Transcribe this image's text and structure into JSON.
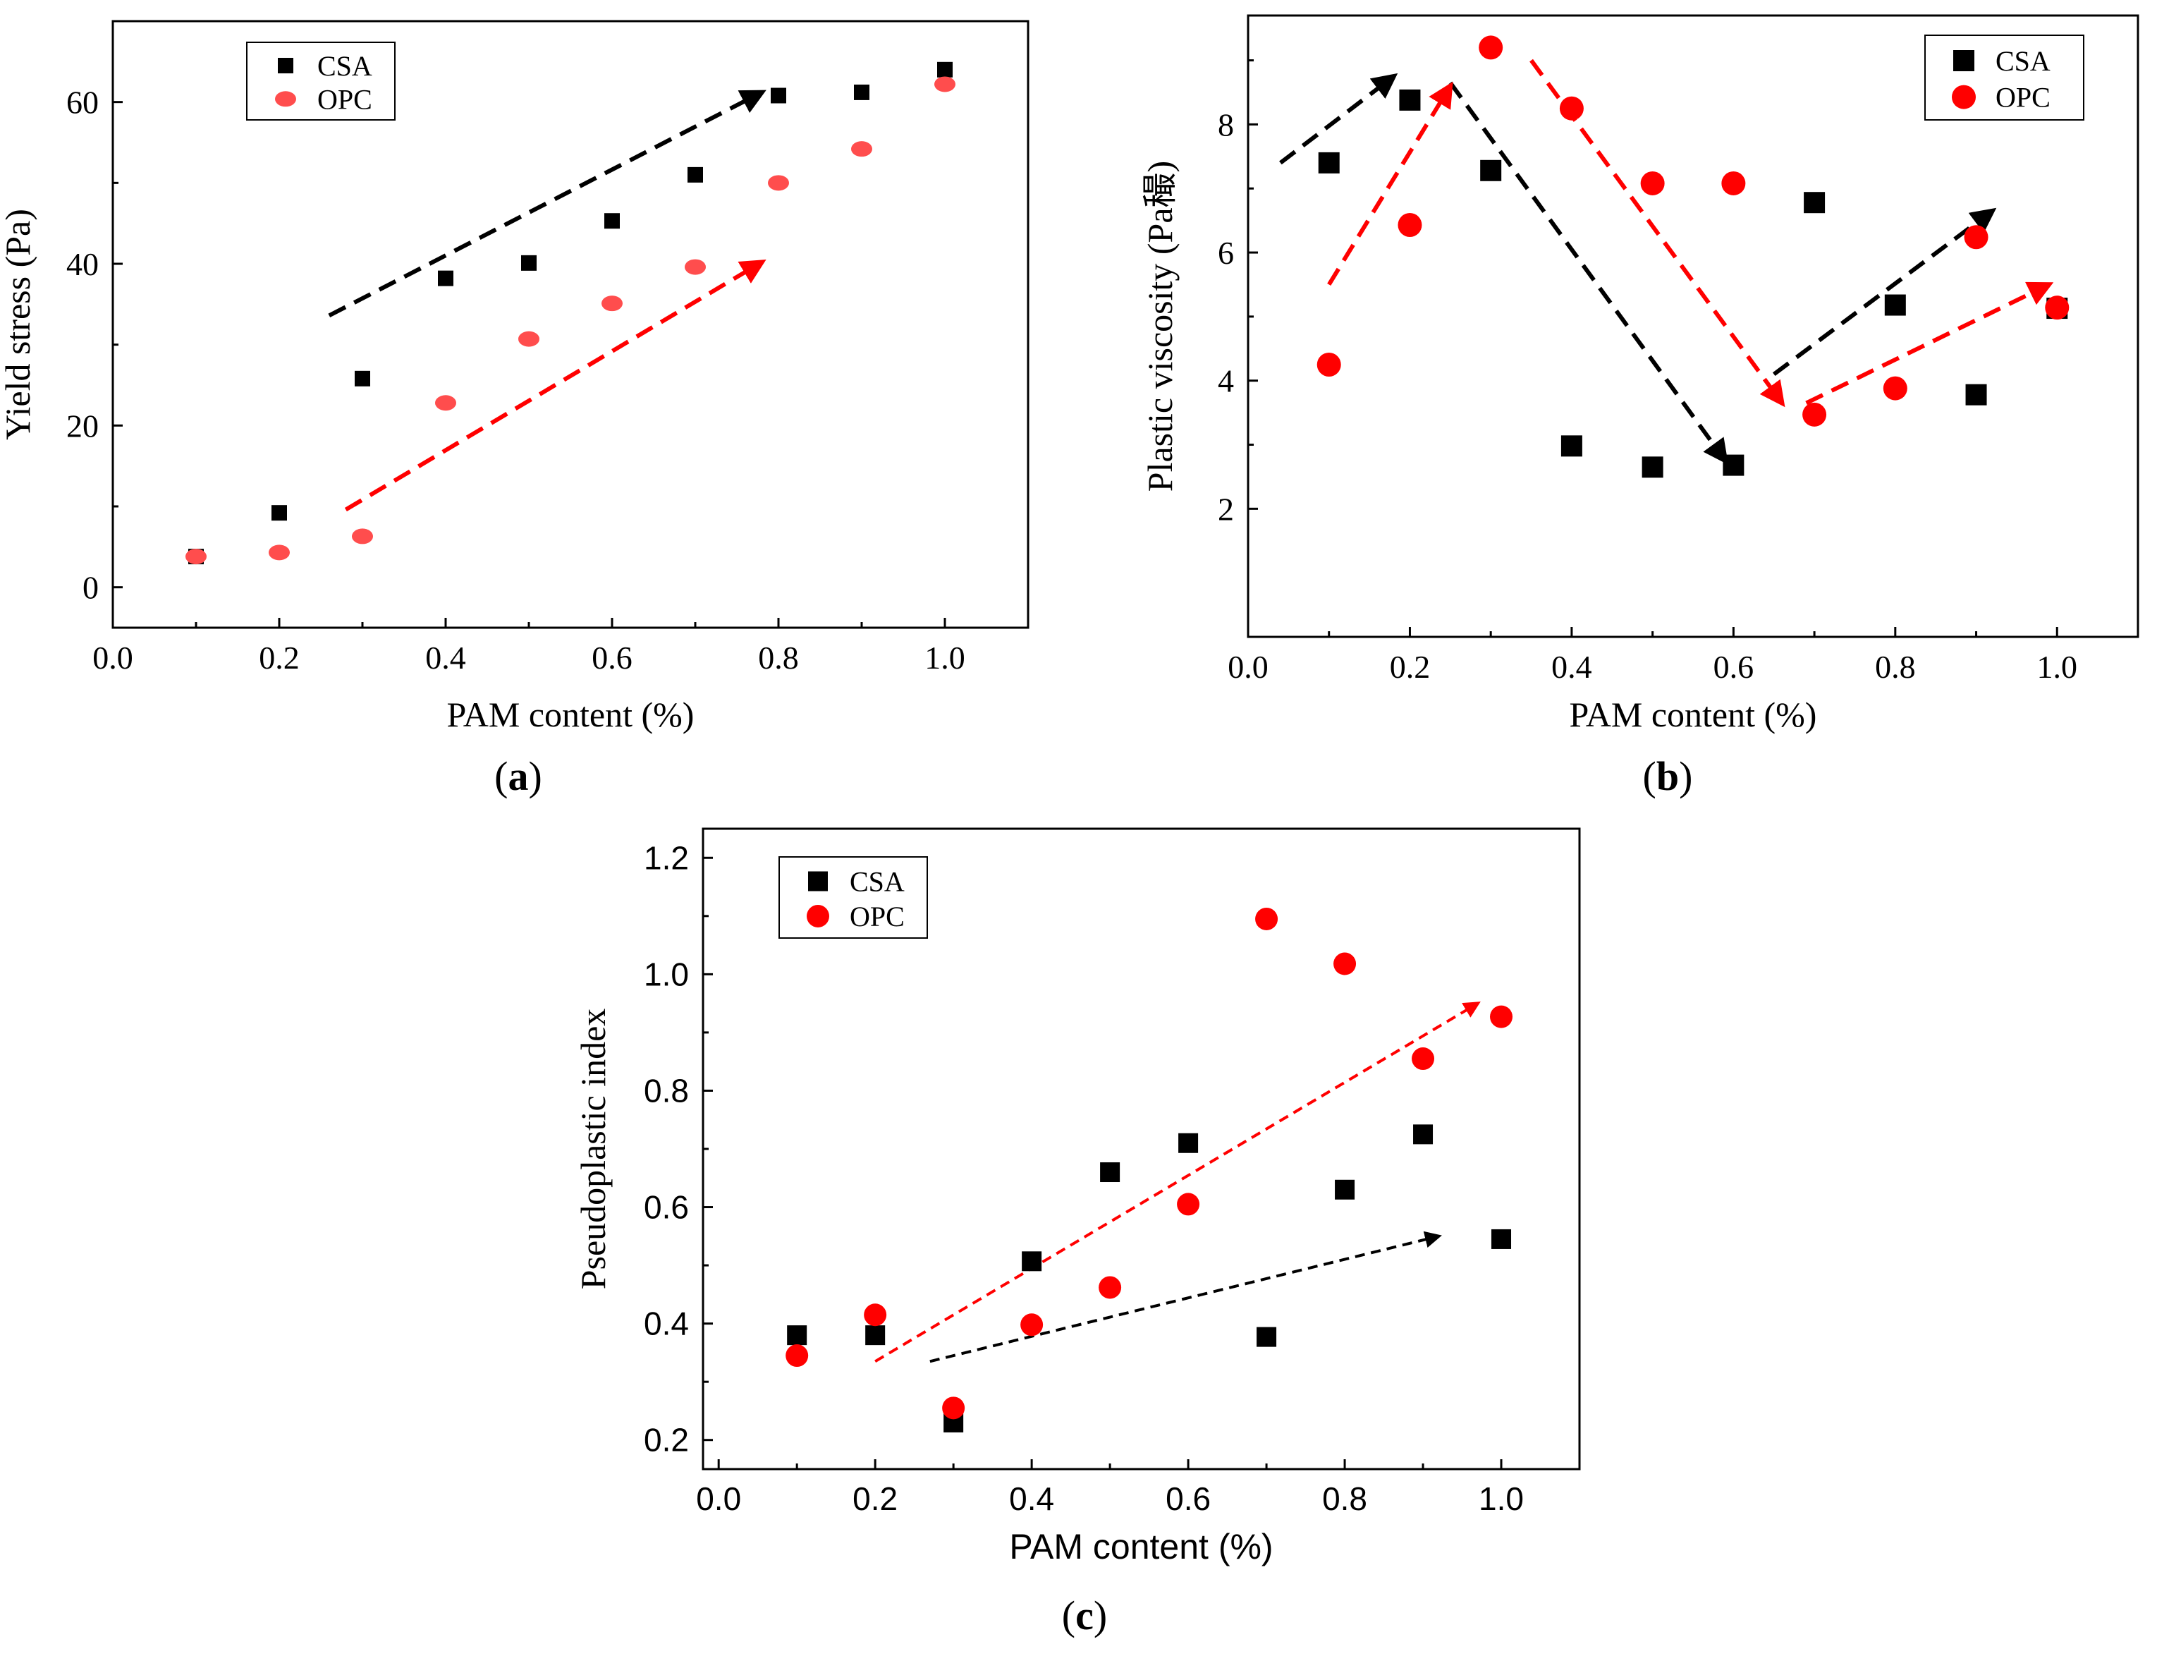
{
  "colors": {
    "CSA": "#000000",
    "OPC": "#ff0000",
    "OPC_light": "#ff4d4d"
  },
  "chart_data": [
    {
      "panel": "(a)",
      "panel_letter": "a",
      "type": "scatter",
      "xlabel": "PAM content (%)",
      "ylabel": "Yield stress (Pa)",
      "xlim": [
        0,
        1.1
      ],
      "ylim": [
        -5,
        70
      ],
      "xticks": [
        "0.0",
        "0.2",
        "0.4",
        "0.6",
        "0.8",
        "1.0"
      ],
      "yticks": [
        "0",
        "20",
        "40",
        "60"
      ],
      "legend_position": "top-left",
      "series": [
        {
          "name": "CSA",
          "x": [
            0.1,
            0.2,
            0.3,
            0.4,
            0.5,
            0.6,
            0.7,
            0.8,
            0.9,
            1.0
          ],
          "y": [
            3.8,
            9.2,
            25.8,
            38.2,
            40.1,
            45.3,
            51.0,
            60.8,
            61.2,
            64.0
          ]
        },
        {
          "name": "OPC",
          "x": [
            0.1,
            0.2,
            0.3,
            0.4,
            0.5,
            0.6,
            0.7,
            0.8,
            0.9,
            1.0
          ],
          "y": [
            3.8,
            4.3,
            6.3,
            22.8,
            30.7,
            35.1,
            39.6,
            50.0,
            54.2,
            62.2
          ]
        }
      ],
      "trend_arrows": [
        {
          "series": "CSA",
          "from": [
            0.26,
            33.6
          ],
          "to": [
            0.78,
            61.2
          ]
        },
        {
          "series": "OPC",
          "from": [
            0.28,
            9.6
          ],
          "to": [
            0.78,
            40.2
          ]
        }
      ]
    },
    {
      "panel": "(b)",
      "panel_letter": "b",
      "type": "scatter",
      "xlabel": "PAM content (%)",
      "ylabel": "Plastic viscosity (Pa穝)",
      "xlim": [
        0,
        1.1
      ],
      "ylim": [
        0,
        9.7
      ],
      "xticks": [
        "0.0",
        "0.2",
        "0.4",
        "0.6",
        "0.8",
        "1.0"
      ],
      "yticks": [
        "2",
        "4",
        "6",
        "8"
      ],
      "legend_position": "top-right",
      "series": [
        {
          "name": "CSA",
          "x": [
            0.1,
            0.2,
            0.3,
            0.4,
            0.5,
            0.6,
            0.7,
            0.8,
            0.9,
            1.0
          ],
          "y": [
            7.4,
            8.38,
            7.28,
            2.98,
            2.65,
            2.68,
            6.78,
            5.18,
            3.78,
            5.13
          ]
        },
        {
          "name": "OPC",
          "x": [
            0.1,
            0.2,
            0.3,
            0.4,
            0.5,
            0.6,
            0.7,
            0.8,
            0.9,
            1.0
          ],
          "y": [
            4.25,
            6.43,
            9.2,
            8.25,
            7.08,
            7.08,
            3.47,
            3.88,
            6.24,
            5.14
          ]
        }
      ],
      "trend_arrows": [
        {
          "series": "CSA",
          "from": [
            0.04,
            7.4
          ],
          "to": [
            0.18,
            8.75
          ]
        },
        {
          "series": "CSA",
          "from": [
            0.25,
            8.65
          ],
          "to": [
            0.59,
            2.75
          ]
        },
        {
          "series": "CSA",
          "from": [
            0.65,
            4.1
          ],
          "to": [
            0.92,
            6.65
          ]
        },
        {
          "series": "OPC",
          "from": [
            0.1,
            5.5
          ],
          "to": [
            0.25,
            8.6
          ]
        },
        {
          "series": "OPC",
          "from": [
            0.35,
            9.0
          ],
          "to": [
            0.66,
            3.65
          ]
        },
        {
          "series": "OPC",
          "from": [
            0.69,
            3.65
          ],
          "to": [
            0.99,
            5.5
          ]
        }
      ]
    },
    {
      "panel": "(c)",
      "panel_letter": "c",
      "type": "scatter",
      "xlabel": "PAM content (%)",
      "ylabel": "Pseudoplastic index",
      "xlim": [
        -0.02,
        1.1
      ],
      "ylim": [
        0.15,
        1.25
      ],
      "xticks": [
        "0.0",
        "0.2",
        "0.4",
        "0.6",
        "0.8",
        "1.0"
      ],
      "yticks": [
        "0.2",
        "0.4",
        "0.6",
        "0.8",
        "1.0",
        "1.2"
      ],
      "legend_position": "top-left",
      "series": [
        {
          "name": "CSA",
          "x": [
            0.1,
            0.2,
            0.3,
            0.4,
            0.5,
            0.6,
            0.7,
            0.8,
            0.9,
            1.0
          ],
          "y": [
            0.38,
            0.38,
            0.23,
            0.507,
            0.66,
            0.71,
            0.377,
            0.63,
            0.725,
            0.545
          ]
        },
        {
          "name": "OPC",
          "x": [
            0.1,
            0.2,
            0.3,
            0.4,
            0.5,
            0.6,
            0.7,
            0.8,
            0.9,
            1.0
          ],
          "y": [
            0.345,
            0.415,
            0.255,
            0.398,
            0.462,
            0.605,
            1.095,
            1.018,
            0.855,
            0.927
          ]
        }
      ],
      "trend_arrows": [
        {
          "series": "CSA",
          "from": [
            0.27,
            0.335
          ],
          "to": [
            0.92,
            0.55
          ]
        },
        {
          "series": "OPC",
          "from": [
            0.2,
            0.335
          ],
          "to": [
            0.97,
            0.95
          ]
        }
      ]
    }
  ]
}
